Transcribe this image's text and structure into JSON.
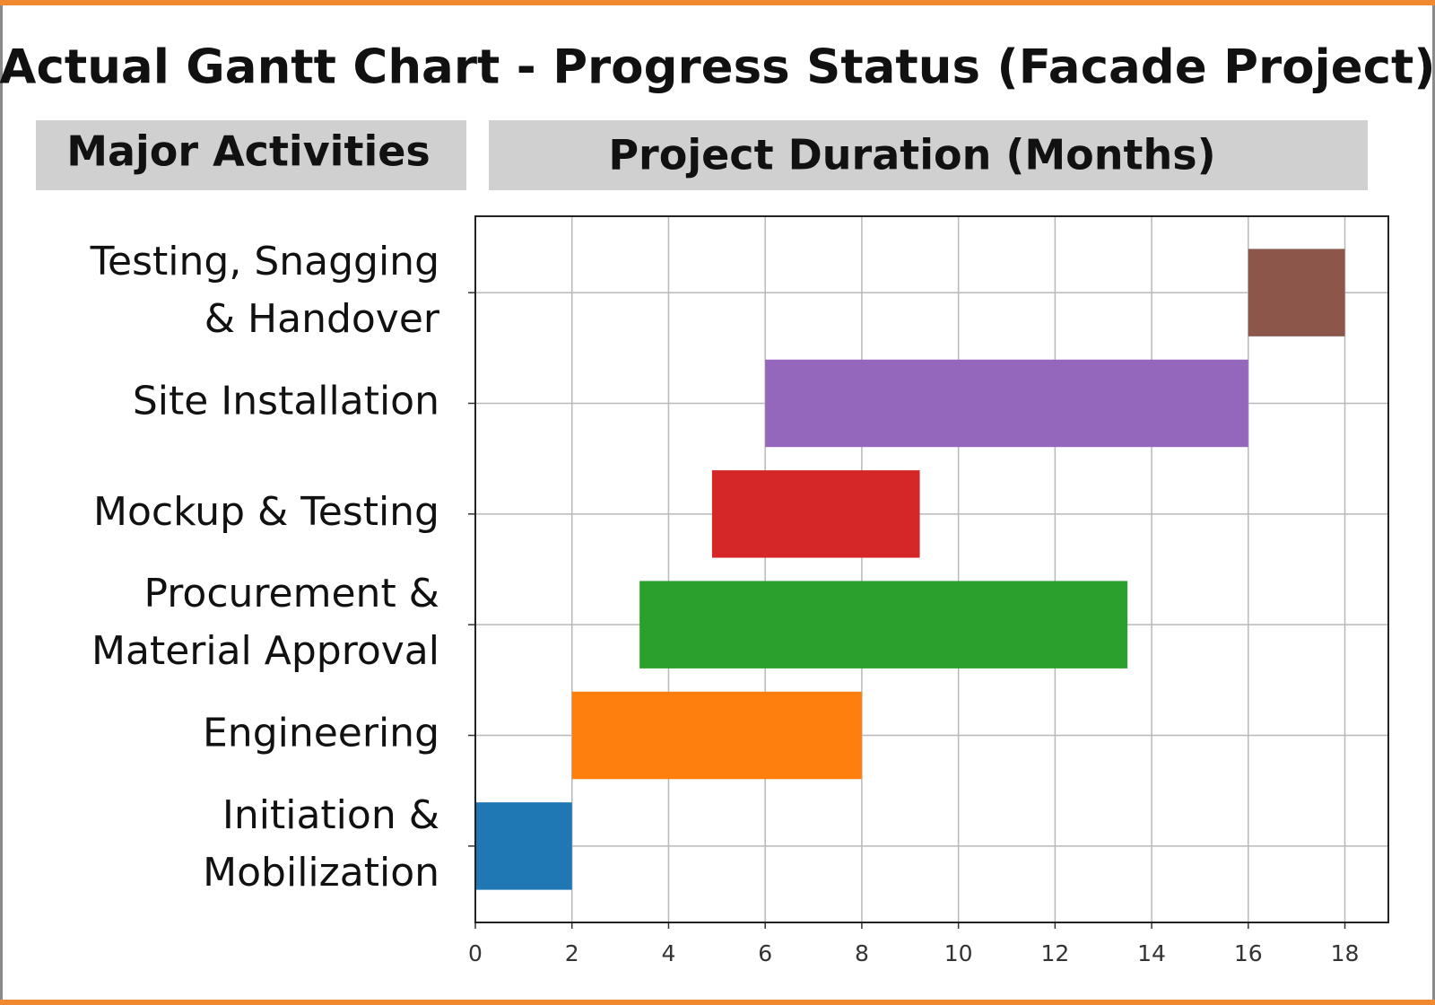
{
  "chart_data": {
    "type": "gantt",
    "title": "Actual Gantt Chart - Progress Status (Facade Project)",
    "y_label": "Major Activities",
    "x_label": "Project Duration (Months)",
    "categories": [
      [
        "Initiation &",
        "Mobilization"
      ],
      [
        "Engineering"
      ],
      [
        "Procurement &",
        "Material Approval"
      ],
      [
        "Mockup & Testing"
      ],
      [
        "Site Installation"
      ],
      [
        "Testing, Snagging",
        "& Handover"
      ]
    ],
    "start": [
      0,
      2,
      3.4,
      4.9,
      6,
      16
    ],
    "end": [
      2,
      8,
      13.5,
      9.2,
      16,
      18
    ],
    "colors": [
      "#1f77b4",
      "#ff7f0e",
      "#2ca02c",
      "#d62728",
      "#9467bd",
      "#8c564b"
    ],
    "xlim": [
      0,
      18.9
    ],
    "xticks": [
      0,
      2,
      4,
      6,
      8,
      10,
      12,
      14,
      16,
      18
    ],
    "grid": true
  }
}
